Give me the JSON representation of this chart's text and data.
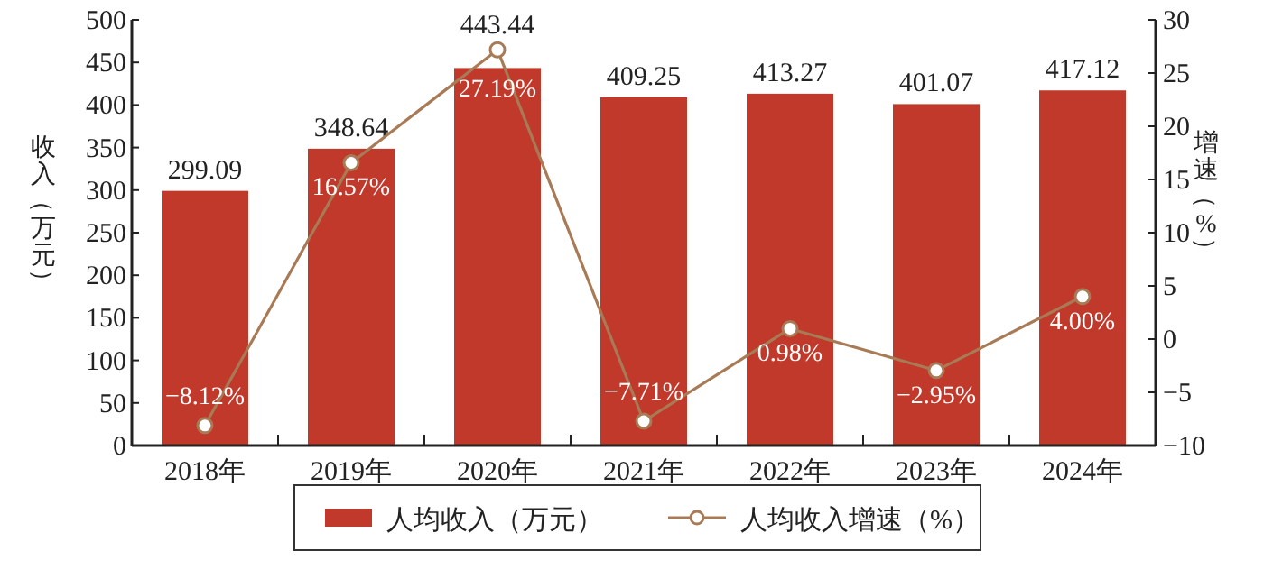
{
  "chart_data": {
    "type": "bar",
    "categories": [
      "2018年",
      "2019年",
      "2020年",
      "2021年",
      "2022年",
      "2023年",
      "2024年"
    ],
    "ylabel": "收入（万元）",
    "y2label": "增速（%）",
    "ylim": [
      0,
      500
    ],
    "yticks": [
      0,
      50,
      100,
      150,
      200,
      250,
      300,
      350,
      400,
      450,
      500
    ],
    "y2lim": [
      -10,
      30
    ],
    "y2ticks": [
      {
        "value": -10,
        "label": "−10"
      },
      {
        "value": -5,
        "label": "−5"
      },
      0,
      5,
      10,
      15,
      20,
      25,
      30
    ],
    "data_labels": true,
    "legend": "bottom",
    "grid": false,
    "series": [
      {
        "name": "人均收入（万元）",
        "color": "#c0392b",
        "values": [
          299.09,
          348.64,
          443.44,
          409.25,
          413.27,
          401.07,
          417.12
        ]
      },
      {
        "name": "人均收入增速（%）",
        "type": "line",
        "axis": "y2",
        "color": "#a87a55",
        "marker": "circle",
        "values": [
          -8.12,
          16.57,
          27.19,
          -7.71,
          0.98,
          -2.95,
          4.0
        ],
        "value_labels": [
          "−8.12%",
          "16.57%",
          "27.19%",
          "−7.71%",
          "0.98%",
          "−2.95%",
          "4.00%"
        ]
      }
    ]
  }
}
